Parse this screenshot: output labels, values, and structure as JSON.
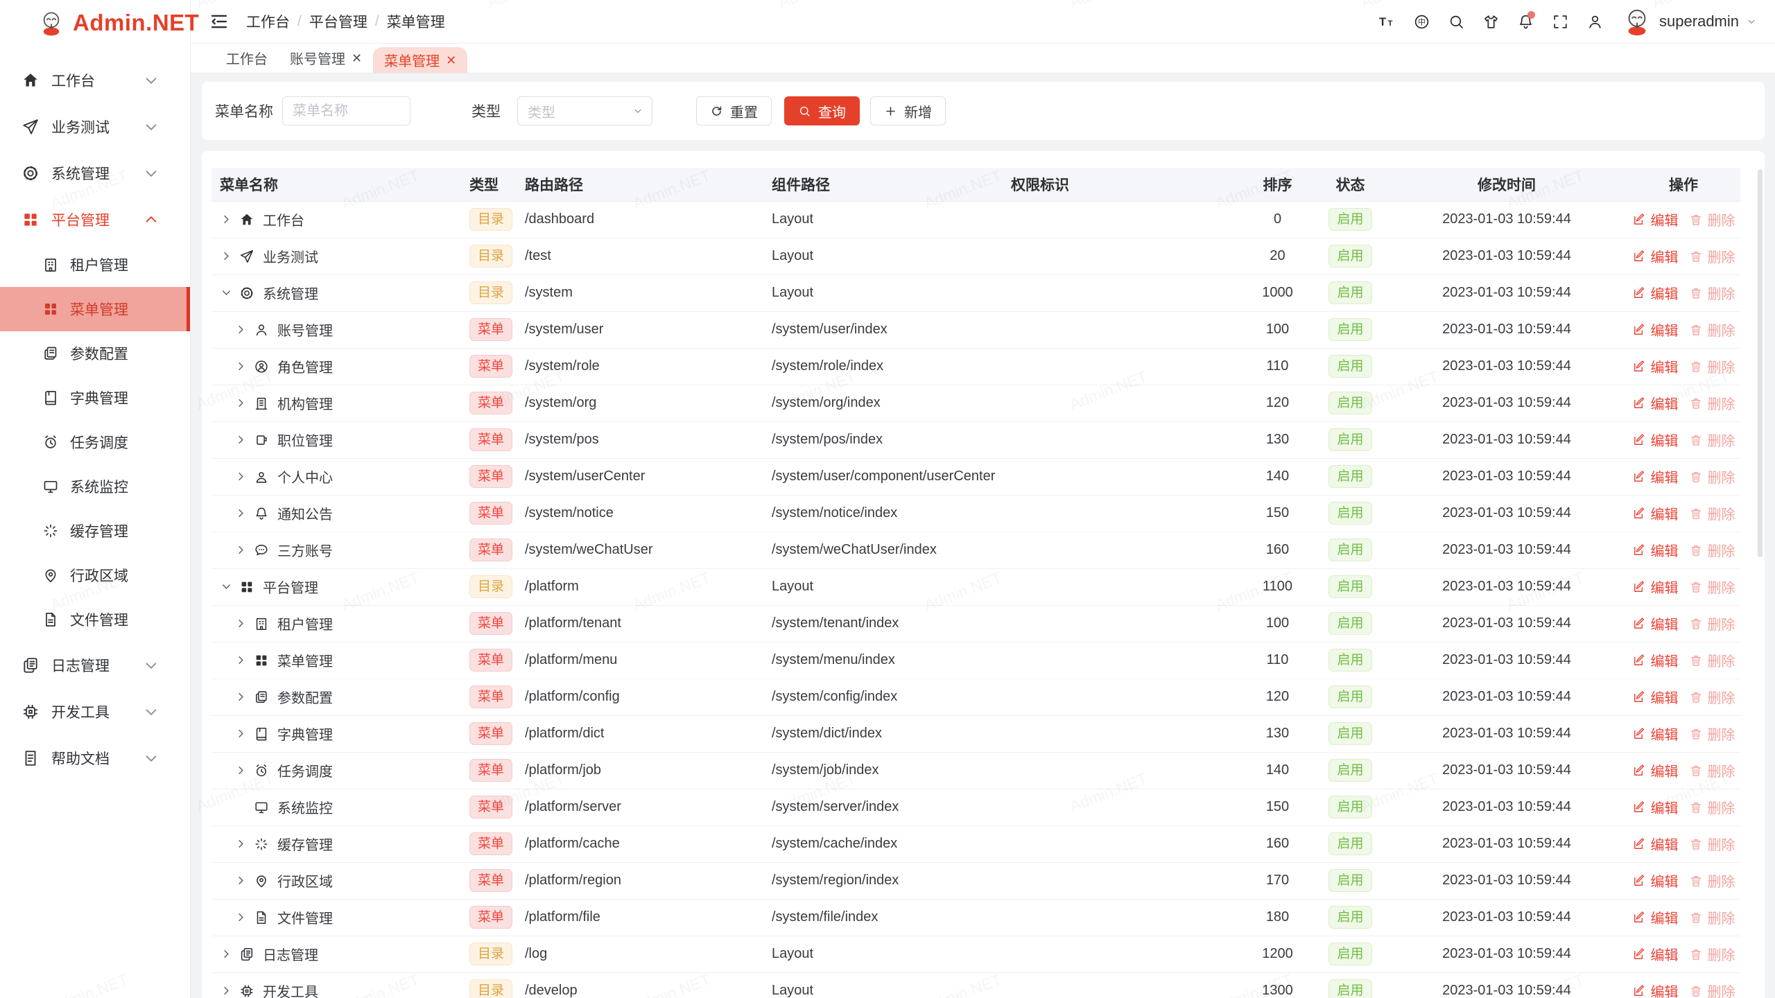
{
  "brand": {
    "name": "Admin.NET",
    "primary_color": "#e5402a"
  },
  "watermark": "Admin.NET",
  "header": {
    "breadcrumb": [
      "工作台",
      "平台管理",
      "菜单管理"
    ],
    "username": "superadmin",
    "tools": [
      {
        "icon": "font-size-icon"
      },
      {
        "icon": "language-icon"
      },
      {
        "icon": "search-icon"
      },
      {
        "icon": "theme-icon"
      },
      {
        "icon": "notification-bell-icon",
        "badge": true
      },
      {
        "icon": "fullscreen-icon"
      },
      {
        "icon": "user-icon"
      }
    ]
  },
  "sidebar": {
    "items": [
      {
        "label": "工作台",
        "icon": "home-icon",
        "state": "collapsed"
      },
      {
        "label": "业务测试",
        "icon": "send-icon",
        "state": "collapsed"
      },
      {
        "label": "系统管理",
        "icon": "gear-icon",
        "state": "collapsed"
      },
      {
        "label": "平台管理",
        "icon": "grid-icon",
        "state": "expanded",
        "active": true,
        "children": [
          {
            "label": "租户管理",
            "icon": "tenant-icon"
          },
          {
            "label": "菜单管理",
            "icon": "menu-grid-icon",
            "selected": true
          },
          {
            "label": "参数配置",
            "icon": "config-icon"
          },
          {
            "label": "字典管理",
            "icon": "dict-icon"
          },
          {
            "label": "任务调度",
            "icon": "job-icon"
          },
          {
            "label": "系统监控",
            "icon": "monitor-icon"
          },
          {
            "label": "缓存管理",
            "icon": "cache-icon"
          },
          {
            "label": "行政区域",
            "icon": "region-icon"
          },
          {
            "label": "文件管理",
            "icon": "file-icon"
          }
        ]
      },
      {
        "label": "日志管理",
        "icon": "log-icon",
        "state": "collapsed"
      },
      {
        "label": "开发工具",
        "icon": "develop-icon",
        "state": "collapsed"
      },
      {
        "label": "帮助文档",
        "icon": "helpdoc-icon",
        "state": "collapsed"
      }
    ]
  },
  "tabs": [
    {
      "label": "工作台",
      "closable": false,
      "active": false
    },
    {
      "label": "账号管理",
      "closable": true,
      "active": false
    },
    {
      "label": "菜单管理",
      "closable": true,
      "active": true
    }
  ],
  "filters": {
    "name_label": "菜单名称",
    "name_placeholder": "菜单名称",
    "name_value": "",
    "type_label": "类型",
    "type_placeholder": "类型",
    "reset_label": "重置",
    "search_label": "查询",
    "add_label": "新增"
  },
  "table": {
    "columns": [
      "菜单名称",
      "类型",
      "路由路径",
      "组件路径",
      "权限标识",
      "排序",
      "状态",
      "修改时间",
      "操作"
    ],
    "edit_label": "编辑",
    "delete_label": "删除",
    "status_colors": {
      "启用": "#6fbf45"
    },
    "type_colors": {
      "目录": "#e0a23f",
      "菜单": "#ef453c"
    },
    "rows": [
      {
        "name": "工作台",
        "icon": "home-icon",
        "level": 0,
        "expand": "collapsed",
        "type": "目录",
        "route": "/dashboard",
        "component": "Layout",
        "permission": "",
        "sort": "0",
        "status": "启用",
        "time": "2023-01-03 10:59:44"
      },
      {
        "name": "业务测试",
        "icon": "send-icon",
        "level": 0,
        "expand": "collapsed",
        "type": "目录",
        "route": "/test",
        "component": "Layout",
        "permission": "",
        "sort": "20",
        "status": "启用",
        "time": "2023-01-03 10:59:44"
      },
      {
        "name": "系统管理",
        "icon": "gear-icon",
        "level": 0,
        "expand": "expanded",
        "type": "目录",
        "route": "/system",
        "component": "Layout",
        "permission": "",
        "sort": "1000",
        "status": "启用",
        "time": "2023-01-03 10:59:44"
      },
      {
        "name": "账号管理",
        "icon": "user-icon",
        "level": 1,
        "expand": "collapsed",
        "type": "菜单",
        "route": "/system/user",
        "component": "/system/user/index",
        "permission": "",
        "sort": "100",
        "status": "启用",
        "time": "2023-01-03 10:59:44"
      },
      {
        "name": "角色管理",
        "icon": "role-icon",
        "level": 1,
        "expand": "collapsed",
        "type": "菜单",
        "route": "/system/role",
        "component": "/system/role/index",
        "permission": "",
        "sort": "110",
        "status": "启用",
        "time": "2023-01-03 10:59:44"
      },
      {
        "name": "机构管理",
        "icon": "org-icon",
        "level": 1,
        "expand": "collapsed",
        "type": "菜单",
        "route": "/system/org",
        "component": "/system/org/index",
        "permission": "",
        "sort": "120",
        "status": "启用",
        "time": "2023-01-03 10:59:44"
      },
      {
        "name": "职位管理",
        "icon": "pos-icon",
        "level": 1,
        "expand": "collapsed",
        "type": "菜单",
        "route": "/system/pos",
        "component": "/system/pos/index",
        "permission": "",
        "sort": "130",
        "status": "启用",
        "time": "2023-01-03 10:59:44"
      },
      {
        "name": "个人中心",
        "icon": "usercenter-icon",
        "level": 1,
        "expand": "collapsed",
        "type": "菜单",
        "route": "/system/userCenter",
        "component": "/system/user/component/userCenter",
        "permission": "",
        "sort": "140",
        "status": "启用",
        "time": "2023-01-03 10:59:44"
      },
      {
        "name": "通知公告",
        "icon": "bell-icon",
        "level": 1,
        "expand": "collapsed",
        "type": "菜单",
        "route": "/system/notice",
        "component": "/system/notice/index",
        "permission": "",
        "sort": "150",
        "status": "启用",
        "time": "2023-01-03 10:59:44"
      },
      {
        "name": "三方账号",
        "icon": "chat-icon",
        "level": 1,
        "expand": "collapsed",
        "type": "菜单",
        "route": "/system/weChatUser",
        "component": "/system/weChatUser/index",
        "permission": "",
        "sort": "160",
        "status": "启用",
        "time": "2023-01-03 10:59:44"
      },
      {
        "name": "平台管理",
        "icon": "grid-icon",
        "level": 0,
        "expand": "expanded",
        "type": "目录",
        "route": "/platform",
        "component": "Layout",
        "permission": "",
        "sort": "1100",
        "status": "启用",
        "time": "2023-01-03 10:59:44"
      },
      {
        "name": "租户管理",
        "icon": "tenant-icon",
        "level": 1,
        "expand": "collapsed",
        "type": "菜单",
        "route": "/platform/tenant",
        "component": "/system/tenant/index",
        "permission": "",
        "sort": "100",
        "status": "启用",
        "time": "2023-01-03 10:59:44"
      },
      {
        "name": "菜单管理",
        "icon": "menu-grid-icon",
        "level": 1,
        "expand": "collapsed",
        "type": "菜单",
        "route": "/platform/menu",
        "component": "/system/menu/index",
        "permission": "",
        "sort": "110",
        "status": "启用",
        "time": "2023-01-03 10:59:44"
      },
      {
        "name": "参数配置",
        "icon": "config-icon",
        "level": 1,
        "expand": "collapsed",
        "type": "菜单",
        "route": "/platform/config",
        "component": "/system/config/index",
        "permission": "",
        "sort": "120",
        "status": "启用",
        "time": "2023-01-03 10:59:44"
      },
      {
        "name": "字典管理",
        "icon": "dict-icon",
        "level": 1,
        "expand": "collapsed",
        "type": "菜单",
        "route": "/platform/dict",
        "component": "/system/dict/index",
        "permission": "",
        "sort": "130",
        "status": "启用",
        "time": "2023-01-03 10:59:44"
      },
      {
        "name": "任务调度",
        "icon": "job-icon",
        "level": 1,
        "expand": "collapsed",
        "type": "菜单",
        "route": "/platform/job",
        "component": "/system/job/index",
        "permission": "",
        "sort": "140",
        "status": "启用",
        "time": "2023-01-03 10:59:44"
      },
      {
        "name": "系统监控",
        "icon": "monitor-icon",
        "level": 1,
        "expand": "none",
        "type": "菜单",
        "route": "/platform/server",
        "component": "/system/server/index",
        "permission": "",
        "sort": "150",
        "status": "启用",
        "time": "2023-01-03 10:59:44"
      },
      {
        "name": "缓存管理",
        "icon": "cache-icon",
        "level": 1,
        "expand": "collapsed",
        "type": "菜单",
        "route": "/platform/cache",
        "component": "/system/cache/index",
        "permission": "",
        "sort": "160",
        "status": "启用",
        "time": "2023-01-03 10:59:44"
      },
      {
        "name": "行政区域",
        "icon": "region-icon",
        "level": 1,
        "expand": "collapsed",
        "type": "菜单",
        "route": "/platform/region",
        "component": "/system/region/index",
        "permission": "",
        "sort": "170",
        "status": "启用",
        "time": "2023-01-03 10:59:44"
      },
      {
        "name": "文件管理",
        "icon": "file-icon",
        "level": 1,
        "expand": "collapsed",
        "type": "菜单",
        "route": "/platform/file",
        "component": "/system/file/index",
        "permission": "",
        "sort": "180",
        "status": "启用",
        "time": "2023-01-03 10:59:44"
      },
      {
        "name": "日志管理",
        "icon": "log-icon",
        "level": 0,
        "expand": "collapsed",
        "type": "目录",
        "route": "/log",
        "component": "Layout",
        "permission": "",
        "sort": "1200",
        "status": "启用",
        "time": "2023-01-03 10:59:44"
      },
      {
        "name": "开发工具",
        "icon": "develop-icon",
        "level": 0,
        "expand": "collapsed",
        "type": "目录",
        "route": "/develop",
        "component": "Layout",
        "permission": "",
        "sort": "1300",
        "status": "启用",
        "time": "2023-01-03 10:59:44"
      }
    ]
  }
}
